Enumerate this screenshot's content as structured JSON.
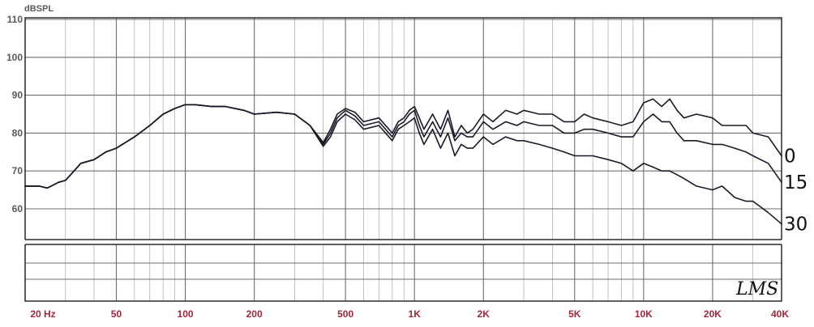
{
  "chart_data": {
    "type": "line",
    "title": "",
    "ylabel": "dBSPL",
    "xlabel": "",
    "x_scale": "log",
    "xlim": [
      20,
      40000
    ],
    "ylim": [
      50,
      110
    ],
    "grid": true,
    "y_ticks": [
      60,
      70,
      80,
      90,
      100,
      110
    ],
    "x_ticks": [
      {
        "value": 20,
        "label": "20 Hz"
      },
      {
        "value": 50,
        "label": "50"
      },
      {
        "value": 100,
        "label": "100"
      },
      {
        "value": 200,
        "label": "200"
      },
      {
        "value": 500,
        "label": "500"
      },
      {
        "value": 1000,
        "label": "1K"
      },
      {
        "value": 2000,
        "label": "2K"
      },
      {
        "value": 5000,
        "label": "5K"
      },
      {
        "value": 10000,
        "label": "10K"
      },
      {
        "value": 20000,
        "label": "20K"
      },
      {
        "value": 40000,
        "label": "40K"
      }
    ],
    "curve_labels_position": "right",
    "brand_text": "LMS",
    "line_color": "#1a1a2a",
    "grid_color": "#8a8a8a",
    "xlabel_color": "#a0283a",
    "series": [
      {
        "name": "0",
        "x": [
          20,
          23,
          25,
          28,
          30,
          35,
          40,
          45,
          50,
          60,
          70,
          80,
          90,
          100,
          110,
          130,
          150,
          180,
          200,
          250,
          300,
          350,
          400,
          430,
          460,
          500,
          550,
          600,
          700,
          800,
          850,
          900,
          950,
          1000,
          1050,
          1100,
          1200,
          1300,
          1400,
          1500,
          1600,
          1700,
          1800,
          2000,
          2200,
          2500,
          2800,
          3000,
          3500,
          4000,
          4500,
          5000,
          5500,
          6000,
          7000,
          8000,
          9000,
          10000,
          11000,
          12000,
          13000,
          14000,
          15000,
          17000,
          20000,
          22000,
          25000,
          28000,
          30000,
          35000,
          40000
        ],
        "y": [
          66,
          66,
          65.5,
          67,
          67.5,
          72,
          73,
          75,
          76,
          79,
          82,
          85,
          86.5,
          87.5,
          87.5,
          87,
          87,
          86,
          85,
          85.5,
          85,
          82,
          77.5,
          81,
          85,
          86.5,
          85.5,
          83,
          84,
          80,
          83,
          84,
          86,
          87,
          84,
          81,
          85,
          81,
          86,
          79,
          82,
          80,
          81,
          85,
          83,
          86,
          85,
          86,
          85,
          85,
          83,
          83,
          85,
          84,
          83,
          82,
          83,
          88,
          89,
          87,
          89,
          86,
          84,
          85,
          84,
          82,
          82,
          82,
          80,
          79,
          74
        ]
      },
      {
        "name": "15",
        "x": [
          20,
          23,
          25,
          28,
          30,
          35,
          40,
          45,
          50,
          60,
          70,
          80,
          90,
          100,
          110,
          130,
          150,
          180,
          200,
          250,
          300,
          350,
          400,
          430,
          460,
          500,
          550,
          600,
          700,
          800,
          850,
          900,
          950,
          1000,
          1050,
          1100,
          1200,
          1300,
          1400,
          1500,
          1600,
          1700,
          1800,
          2000,
          2200,
          2500,
          2800,
          3000,
          3500,
          4000,
          4500,
          5000,
          5500,
          6000,
          7000,
          8000,
          9000,
          10000,
          11000,
          12000,
          13000,
          14000,
          15000,
          17000,
          20000,
          22000,
          25000,
          28000,
          30000,
          35000,
          40000
        ],
        "y": [
          66,
          66,
          65.5,
          67,
          67.5,
          72,
          73,
          75,
          76,
          79,
          82,
          85,
          86.5,
          87.5,
          87.5,
          87,
          87,
          86,
          85,
          85.5,
          85,
          82,
          77,
          80,
          84,
          86,
          84.5,
          82,
          83,
          79,
          82,
          83,
          85,
          86,
          82,
          79,
          83,
          79,
          84,
          78,
          80,
          79,
          79,
          83,
          81,
          83,
          82,
          83,
          82,
          82,
          80,
          80,
          81,
          81,
          80,
          79,
          79,
          83,
          85,
          83,
          83,
          80,
          78,
          78,
          77,
          77,
          76,
          75,
          74,
          72,
          67
        ]
      },
      {
        "name": "30",
        "x": [
          20,
          23,
          25,
          28,
          30,
          35,
          40,
          45,
          50,
          60,
          70,
          80,
          90,
          100,
          110,
          130,
          150,
          180,
          200,
          250,
          300,
          350,
          400,
          430,
          460,
          500,
          550,
          600,
          700,
          800,
          850,
          900,
          950,
          1000,
          1050,
          1100,
          1200,
          1300,
          1400,
          1500,
          1600,
          1700,
          1800,
          2000,
          2200,
          2500,
          2800,
          3000,
          3500,
          4000,
          4500,
          5000,
          5500,
          6000,
          7000,
          8000,
          9000,
          10000,
          11000,
          12000,
          13000,
          14000,
          15000,
          17000,
          20000,
          22000,
          25000,
          28000,
          30000,
          35000,
          40000
        ],
        "y": [
          66,
          66,
          65.5,
          67,
          67.5,
          72,
          73,
          75,
          76,
          79,
          82,
          85,
          86.5,
          87.5,
          87.5,
          87,
          87,
          86,
          85,
          85.5,
          85,
          82,
          76.5,
          79,
          83,
          85,
          83.5,
          81,
          82,
          78,
          81,
          82,
          83,
          84,
          80,
          77,
          81,
          76,
          80,
          74,
          77,
          76,
          76,
          79,
          77,
          79,
          78,
          78,
          77,
          76,
          75,
          74,
          74,
          74,
          73,
          72,
          70,
          72,
          71,
          70,
          70,
          69,
          68,
          66,
          65,
          66,
          63,
          62,
          62,
          59,
          56
        ]
      }
    ]
  }
}
